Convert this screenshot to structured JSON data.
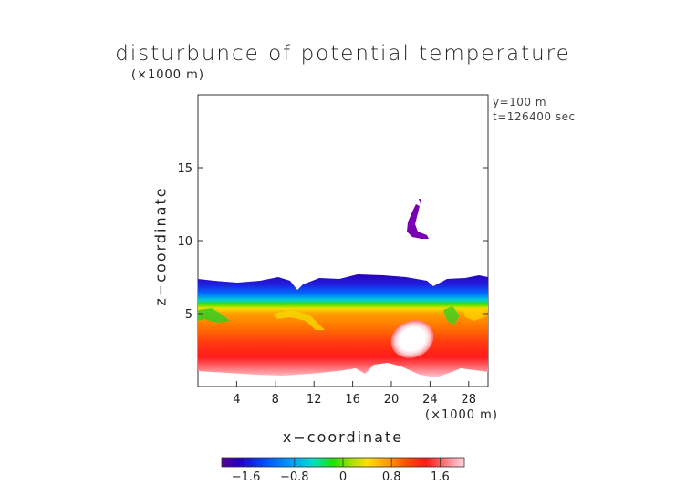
{
  "chart_data": {
    "type": "heatmap",
    "title": "disturbunce of potential temperature",
    "xlabel": "x−coordinate",
    "ylabel": "z−coordinate",
    "x_unit": "(×1000 m)",
    "y_unit": "(×1000 m)",
    "annotations": [
      "y=100 m",
      "t=126400 sec"
    ],
    "xlim": [
      0,
      30
    ],
    "ylim": [
      0,
      20
    ],
    "x_ticks": [
      4,
      8,
      12,
      16,
      20,
      24,
      28
    ],
    "y_ticks": [
      5,
      10,
      15
    ],
    "x_tick_labels": [
      "4",
      "8",
      "12",
      "16",
      "20",
      "24",
      "28"
    ],
    "y_tick_labels": [
      "5",
      "10",
      "15"
    ],
    "colorbar": {
      "range": [
        -2.0,
        2.0
      ],
      "ticks": [
        -1.6,
        -0.8,
        0,
        0.8,
        1.6
      ],
      "tick_labels": [
        "−1.6",
        "−0.8",
        "0",
        "0.8",
        "1.6"
      ],
      "colors": [
        "#5a0096",
        "#1f00c8",
        "#0050ff",
        "#00a0ff",
        "#00e0c0",
        "#20e000",
        "#b0e000",
        "#ffe000",
        "#ffa000",
        "#ff5000",
        "#ff1a1a",
        "#ff5a5a",
        "#ff9ea8",
        "#ffd6dc"
      ]
    },
    "layers": [
      {
        "name": "near-surface warm layer",
        "z_range": [
          0.5,
          4.0
        ],
        "value": 1.8
      },
      {
        "name": "lower warm layer",
        "z_range": [
          4.0,
          5.5
        ],
        "value": 1.1
      },
      {
        "name": "transition",
        "z_range": [
          5.5,
          6.5
        ],
        "value": 0.0
      },
      {
        "name": "cold layer top",
        "z_range": [
          6.5,
          7.5
        ],
        "value": -1.5
      }
    ],
    "features": [
      {
        "name": "warm bubble",
        "x": 23,
        "z": 3.0,
        "value": 2.0
      },
      {
        "name": "isolated cold patch",
        "x": 22.5,
        "z": 11.5,
        "value": -2.0
      }
    ]
  }
}
